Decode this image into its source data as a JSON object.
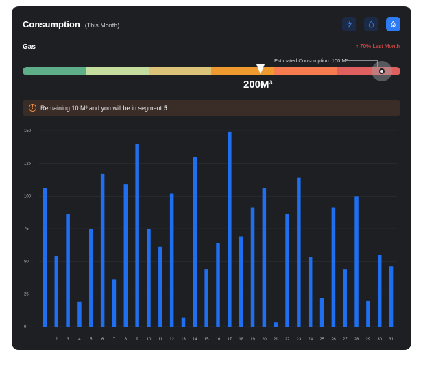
{
  "header": {
    "title": "Consumption",
    "subtitle": "(This Month)",
    "buttons": [
      {
        "icon": "lightning-icon",
        "active": false
      },
      {
        "icon": "water-drop-icon",
        "active": false
      },
      {
        "icon": "flame-icon",
        "active": true
      }
    ]
  },
  "gas": {
    "label": "Gas",
    "trend_text": "↑ 70% Last Month",
    "estimated_label": "Estimated Consumption: 100 M³",
    "current_value": "200M³",
    "segment_colors": [
      "#5fae8a",
      "#c4dc9e",
      "#dcc37a",
      "#ee9a2e",
      "#f67c4f",
      "#e0605f"
    ]
  },
  "alert": {
    "text": "Remaining 10 M³ and you will be in segment",
    "segment": "5"
  },
  "chart_data": {
    "type": "bar",
    "categories": [
      "1",
      "2",
      "3",
      "4",
      "5",
      "6",
      "7",
      "8",
      "9",
      "10",
      "11",
      "12",
      "13",
      "14",
      "15",
      "16",
      "17",
      "18",
      "19",
      "20",
      "21",
      "22",
      "23",
      "24",
      "25",
      "26",
      "27",
      "28",
      "29",
      "30",
      "31"
    ],
    "values": [
      106,
      54,
      86,
      19,
      75,
      117,
      36,
      109,
      140,
      75,
      61,
      102,
      7,
      130,
      44,
      64,
      149,
      69,
      91,
      106,
      3,
      86,
      114,
      53,
      22,
      91,
      44,
      100,
      20,
      55,
      46
    ],
    "ylim": [
      0,
      150
    ],
    "yticks": [
      0,
      25,
      50,
      75,
      100,
      125,
      150
    ],
    "bar_color": "#1f6ff0",
    "grid": true
  }
}
